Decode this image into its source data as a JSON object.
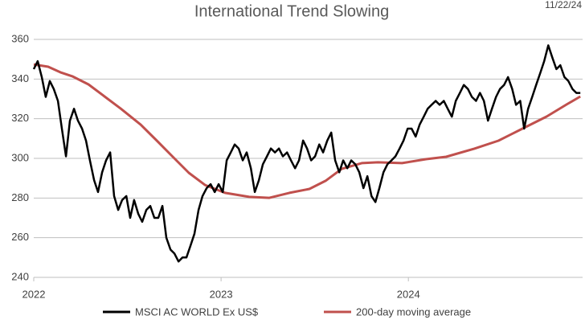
{
  "chart_data": {
    "type": "line",
    "title": "International Trend Slowing",
    "annotation": "11/22/24",
    "xlim": [
      2022,
      2024.93
    ],
    "xticks": [
      2022,
      2023,
      2024
    ],
    "ylim": [
      240,
      360
    ],
    "yticks": [
      240,
      260,
      280,
      300,
      320,
      340,
      360
    ],
    "grid": true,
    "series": [
      {
        "name": "MSCI AC WORLD Ex US$",
        "color": "#000000",
        "x": [
          2022.0,
          2022.021,
          2022.043,
          2022.064,
          2022.086,
          2022.107,
          2022.129,
          2022.15,
          2022.172,
          2022.193,
          2022.215,
          2022.236,
          2022.258,
          2022.279,
          2022.3,
          2022.322,
          2022.343,
          2022.365,
          2022.386,
          2022.408,
          2022.429,
          2022.451,
          2022.472,
          2022.494,
          2022.515,
          2022.536,
          2022.558,
          2022.579,
          2022.601,
          2022.622,
          2022.644,
          2022.665,
          2022.687,
          2022.708,
          2022.73,
          2022.751,
          2022.773,
          2022.794,
          2022.815,
          2022.837,
          2022.858,
          2022.88,
          2022.901,
          2022.923,
          2022.944,
          2022.966,
          2022.987,
          2023.009,
          2023.03,
          2023.052,
          2023.073,
          2023.094,
          2023.116,
          2023.137,
          2023.159,
          2023.18,
          2023.202,
          2023.223,
          2023.245,
          2023.266,
          2023.288,
          2023.309,
          2023.33,
          2023.352,
          2023.373,
          2023.395,
          2023.416,
          2023.438,
          2023.459,
          2023.481,
          2023.502,
          2023.524,
          2023.545,
          2023.567,
          2023.588,
          2023.609,
          2023.631,
          2023.652,
          2023.674,
          2023.695,
          2023.717,
          2023.738,
          2023.76,
          2023.781,
          2023.803,
          2023.824,
          2023.845,
          2023.867,
          2023.888,
          2023.91,
          2023.931,
          2023.953,
          2023.974,
          2023.996,
          2024.017,
          2024.039,
          2024.06,
          2024.082,
          2024.103,
          2024.124,
          2024.146,
          2024.167,
          2024.189,
          2024.21,
          2024.232,
          2024.253,
          2024.275,
          2024.296,
          2024.318,
          2024.339,
          2024.361,
          2024.382,
          2024.403,
          2024.425,
          2024.446,
          2024.468,
          2024.489,
          2024.511,
          2024.532,
          2024.554,
          2024.575,
          2024.597,
          2024.618,
          2024.639,
          2024.661,
          2024.682,
          2024.704,
          2024.725,
          2024.747,
          2024.768,
          2024.79,
          2024.811,
          2024.833,
          2024.854,
          2024.876,
          2024.897,
          2024.918
        ],
        "values": [
          345,
          349,
          341,
          331,
          339,
          335,
          329,
          315,
          301,
          319,
          325,
          319,
          315,
          309,
          299,
          289,
          283,
          293,
          299,
          303,
          281,
          274,
          279,
          281,
          270,
          279,
          272,
          268,
          274,
          276,
          270,
          270,
          276,
          260,
          254,
          252,
          248,
          250,
          250,
          256,
          262,
          274,
          281,
          285,
          287,
          283,
          287,
          283,
          299,
          303,
          307,
          305,
          299,
          303,
          295,
          283,
          289,
          297,
          301,
          305,
          303,
          305,
          301,
          303,
          299,
          295,
          299,
          309,
          305,
          299,
          301,
          307,
          303,
          309,
          313,
          299,
          293,
          299,
          295,
          299,
          297,
          293,
          285,
          291,
          281,
          278,
          285,
          293,
          297,
          299,
          301,
          305,
          309,
          315,
          315,
          311,
          317,
          321,
          325,
          327,
          329,
          327,
          329,
          325,
          321,
          329,
          333,
          337,
          335,
          331,
          329,
          333,
          329,
          319,
          325,
          331,
          335,
          337,
          341,
          335,
          327,
          329,
          315,
          325,
          331,
          337,
          343,
          349,
          357,
          351,
          345,
          347,
          341,
          339,
          335,
          333,
          333
        ]
      },
      {
        "name": "200-day moving average",
        "color": "#c0504d",
        "x": [
          2022.0,
          2022.077,
          2022.142,
          2022.206,
          2022.292,
          2022.378,
          2022.464,
          2022.571,
          2022.657,
          2022.742,
          2022.828,
          2022.914,
          2023.021,
          2023.15,
          2023.258,
          2023.365,
          2023.472,
          2023.558,
          2023.644,
          2023.751,
          2023.837,
          2023.966,
          2024.094,
          2024.202,
          2024.352,
          2024.481,
          2024.609,
          2024.738,
          2024.845,
          2024.918
        ],
        "values": [
          347.4,
          346.2,
          343.4,
          341.4,
          337.3,
          331.2,
          325.1,
          317,
          308.9,
          300.8,
          292.7,
          286.6,
          282.6,
          280.6,
          280.1,
          282.6,
          284.6,
          288.7,
          294.7,
          297.6,
          298,
          297.6,
          299.6,
          300.8,
          304.9,
          308.9,
          315,
          321.1,
          327.2,
          331.2
        ]
      }
    ]
  }
}
